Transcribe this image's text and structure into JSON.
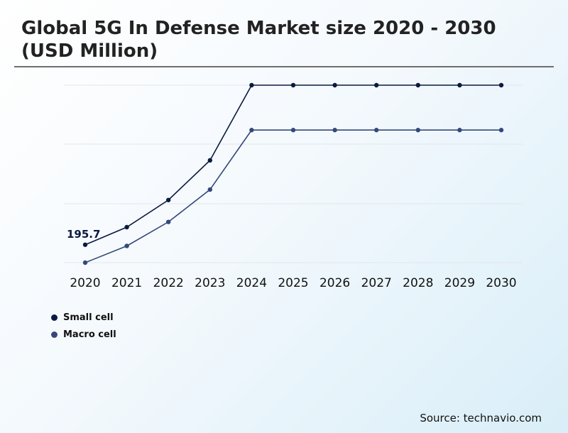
{
  "chart_data": {
    "type": "line",
    "title": "Global 5G In Defense Market size 2020 - 2030 (USD Million)",
    "categories": [
      "2020",
      "2021",
      "2022",
      "2023",
      "2024",
      "2025",
      "2026",
      "2027",
      "2028",
      "2029",
      "2030"
    ],
    "series": [
      {
        "name": "Small cell",
        "color": "#0b1a3f",
        "values": [
          195.7,
          280,
          410,
          600,
          960,
          960,
          960,
          960,
          960,
          960,
          960
        ]
      },
      {
        "name": "Macro cell",
        "color": "#34497a",
        "values": [
          110,
          190,
          305,
          460,
          745,
          745,
          745,
          745,
          745,
          745,
          745
        ]
      }
    ],
    "annotations": [
      {
        "series": 0,
        "index": 0,
        "text": "195.7"
      }
    ],
    "ylim": [
      110,
      960
    ],
    "grid": true,
    "legend": "bottom-left"
  },
  "source": "Source: technavio.com"
}
